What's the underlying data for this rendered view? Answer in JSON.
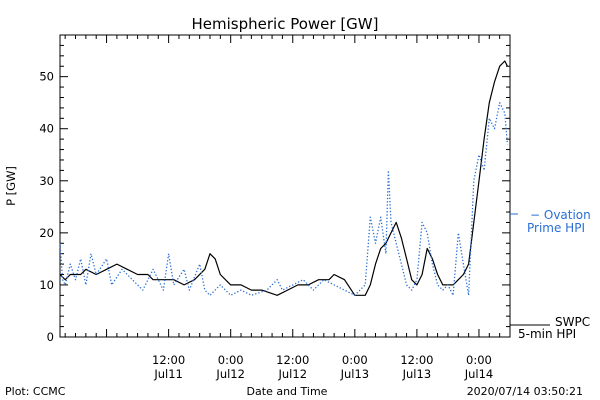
{
  "chart_data": {
    "type": "line",
    "title": "Hemispheric Power [GW]",
    "xlabel": "Date and Time",
    "ylabel": "P [GW]",
    "ylim": [
      0,
      58
    ],
    "xlim": [
      "2020-07-10T15:00",
      "2020-07-14T06:00"
    ],
    "y_ticks": [
      0,
      10,
      20,
      30,
      40,
      50
    ],
    "x_ticks": [
      {
        "time": "2020-07-11T12:00",
        "label_top": "12:00",
        "label_bottom": "Jul11"
      },
      {
        "time": "2020-07-12T00:00",
        "label_top": "0:00",
        "label_bottom": "Jul12"
      },
      {
        "time": "2020-07-12T12:00",
        "label_top": "12:00",
        "label_bottom": "Jul12"
      },
      {
        "time": "2020-07-13T00:00",
        "label_top": "0:00",
        "label_bottom": "Jul13"
      },
      {
        "time": "2020-07-13T12:00",
        "label_top": "12:00",
        "label_bottom": "Jul13"
      },
      {
        "time": "2020-07-14T00:00",
        "label_top": "0:00",
        "label_bottom": "Jul14"
      }
    ],
    "legend_placement": "right",
    "series": [
      {
        "name": "SWPC 5-min HPI",
        "legend_line1": "SWPC",
        "legend_line2": "5-min HPI",
        "color": "#000000",
        "style": "solid",
        "points": [
          [
            "2020-07-10T15:00",
            12
          ],
          [
            "2020-07-10T16:00",
            11
          ],
          [
            "2020-07-10T17:00",
            12
          ],
          [
            "2020-07-10T19:00",
            12
          ],
          [
            "2020-07-10T20:00",
            13
          ],
          [
            "2020-07-10T22:00",
            12
          ],
          [
            "2020-07-11T00:00",
            13
          ],
          [
            "2020-07-11T02:00",
            14
          ],
          [
            "2020-07-11T04:00",
            13
          ],
          [
            "2020-07-11T06:00",
            12
          ],
          [
            "2020-07-11T08:00",
            12
          ],
          [
            "2020-07-11T09:00",
            11
          ],
          [
            "2020-07-11T13:00",
            11
          ],
          [
            "2020-07-11T15:00",
            10
          ],
          [
            "2020-07-11T17:00",
            11
          ],
          [
            "2020-07-11T19:00",
            13
          ],
          [
            "2020-07-11T20:00",
            16
          ],
          [
            "2020-07-11T21:00",
            15
          ],
          [
            "2020-07-11T22:00",
            12
          ],
          [
            "2020-07-12T00:00",
            10
          ],
          [
            "2020-07-12T02:00",
            10
          ],
          [
            "2020-07-12T04:00",
            9
          ],
          [
            "2020-07-12T06:00",
            9
          ],
          [
            "2020-07-12T09:00",
            8
          ],
          [
            "2020-07-12T11:00",
            9
          ],
          [
            "2020-07-12T13:00",
            10
          ],
          [
            "2020-07-12T15:00",
            10
          ],
          [
            "2020-07-12T17:00",
            11
          ],
          [
            "2020-07-12T19:00",
            11
          ],
          [
            "2020-07-12T20:00",
            12
          ],
          [
            "2020-07-12T22:00",
            11
          ],
          [
            "2020-07-13T00:00",
            8
          ],
          [
            "2020-07-13T02:00",
            8
          ],
          [
            "2020-07-13T03:00",
            10
          ],
          [
            "2020-07-13T04:00",
            14
          ],
          [
            "2020-07-13T05:00",
            17
          ],
          [
            "2020-07-13T06:00",
            18
          ],
          [
            "2020-07-13T07:00",
            20
          ],
          [
            "2020-07-13T08:00",
            22
          ],
          [
            "2020-07-13T09:00",
            19
          ],
          [
            "2020-07-13T10:00",
            15
          ],
          [
            "2020-07-13T11:00",
            11
          ],
          [
            "2020-07-13T12:00",
            10
          ],
          [
            "2020-07-13T13:00",
            12
          ],
          [
            "2020-07-13T14:00",
            17
          ],
          [
            "2020-07-13T15:00",
            15
          ],
          [
            "2020-07-13T16:00",
            12
          ],
          [
            "2020-07-13T17:00",
            10
          ],
          [
            "2020-07-13T18:00",
            10
          ],
          [
            "2020-07-13T19:00",
            10
          ],
          [
            "2020-07-13T20:00",
            11
          ],
          [
            "2020-07-13T21:00",
            12
          ],
          [
            "2020-07-13T22:00",
            14
          ],
          [
            "2020-07-13T23:00",
            22
          ],
          [
            "2020-07-14T00:00",
            30
          ],
          [
            "2020-07-14T01:00",
            38
          ],
          [
            "2020-07-14T02:00",
            45
          ],
          [
            "2020-07-14T03:00",
            49
          ],
          [
            "2020-07-14T04:00",
            52
          ],
          [
            "2020-07-14T05:00",
            53
          ],
          [
            "2020-07-14T05:30",
            52
          ]
        ]
      },
      {
        "name": "Ovation Prime HPI",
        "legend_line1": "− Ovation",
        "legend_line2": "Prime HPI",
        "color": "#2a6fd6",
        "style": "dotted",
        "points": [
          [
            "2020-07-10T15:00",
            18
          ],
          [
            "2020-07-10T15:30",
            11
          ],
          [
            "2020-07-10T16:00",
            10
          ],
          [
            "2020-07-10T17:00",
            14
          ],
          [
            "2020-07-10T18:00",
            11
          ],
          [
            "2020-07-10T19:00",
            15
          ],
          [
            "2020-07-10T20:00",
            10
          ],
          [
            "2020-07-10T21:00",
            16
          ],
          [
            "2020-07-10T22:00",
            12
          ],
          [
            "2020-07-11T00:00",
            15
          ],
          [
            "2020-07-11T01:00",
            10
          ],
          [
            "2020-07-11T03:00",
            13
          ],
          [
            "2020-07-11T05:00",
            11
          ],
          [
            "2020-07-11T07:00",
            9
          ],
          [
            "2020-07-11T09:00",
            13
          ],
          [
            "2020-07-11T11:00",
            9
          ],
          [
            "2020-07-11T12:00",
            16
          ],
          [
            "2020-07-11T13:00",
            10
          ],
          [
            "2020-07-11T15:00",
            13
          ],
          [
            "2020-07-11T16:00",
            9
          ],
          [
            "2020-07-11T18:00",
            14
          ],
          [
            "2020-07-11T19:00",
            9
          ],
          [
            "2020-07-11T20:00",
            8
          ],
          [
            "2020-07-11T22:00",
            10
          ],
          [
            "2020-07-12T00:00",
            8
          ],
          [
            "2020-07-12T02:00",
            9
          ],
          [
            "2020-07-12T04:00",
            8
          ],
          [
            "2020-07-12T07:00",
            9
          ],
          [
            "2020-07-12T09:00",
            11
          ],
          [
            "2020-07-12T10:00",
            9
          ],
          [
            "2020-07-12T12:00",
            10
          ],
          [
            "2020-07-12T14:00",
            11
          ],
          [
            "2020-07-12T16:00",
            9
          ],
          [
            "2020-07-12T18:00",
            11
          ],
          [
            "2020-07-12T20:00",
            10
          ],
          [
            "2020-07-12T22:00",
            9
          ],
          [
            "2020-07-13T00:00",
            8
          ],
          [
            "2020-07-13T01:00",
            9
          ],
          [
            "2020-07-13T02:00",
            10
          ],
          [
            "2020-07-13T03:00",
            23
          ],
          [
            "2020-07-13T04:00",
            18
          ],
          [
            "2020-07-13T05:00",
            23
          ],
          [
            "2020-07-13T06:00",
            16
          ],
          [
            "2020-07-13T06:30",
            32
          ],
          [
            "2020-07-13T07:00",
            22
          ],
          [
            "2020-07-13T08:00",
            18
          ],
          [
            "2020-07-13T09:00",
            14
          ],
          [
            "2020-07-13T10:00",
            10
          ],
          [
            "2020-07-13T11:00",
            9
          ],
          [
            "2020-07-13T12:00",
            11
          ],
          [
            "2020-07-13T13:00",
            22
          ],
          [
            "2020-07-13T14:00",
            20
          ],
          [
            "2020-07-13T15:00",
            14
          ],
          [
            "2020-07-13T16:00",
            10
          ],
          [
            "2020-07-13T17:00",
            9
          ],
          [
            "2020-07-13T18:00",
            10
          ],
          [
            "2020-07-13T19:00",
            8
          ],
          [
            "2020-07-13T20:00",
            20
          ],
          [
            "2020-07-13T21:00",
            14
          ],
          [
            "2020-07-13T22:00",
            8
          ],
          [
            "2020-07-13T23:00",
            30
          ],
          [
            "2020-07-14T00:00",
            35
          ],
          [
            "2020-07-14T01:00",
            32
          ],
          [
            "2020-07-14T02:00",
            42
          ],
          [
            "2020-07-14T03:00",
            40
          ],
          [
            "2020-07-14T04:00",
            45
          ],
          [
            "2020-07-14T05:00",
            43
          ],
          [
            "2020-07-14T05:30",
            37
          ]
        ]
      }
    ]
  },
  "footer": {
    "plot_credit": "Plot: CCMC",
    "timestamp": "2020/07/14 03:50:21"
  }
}
